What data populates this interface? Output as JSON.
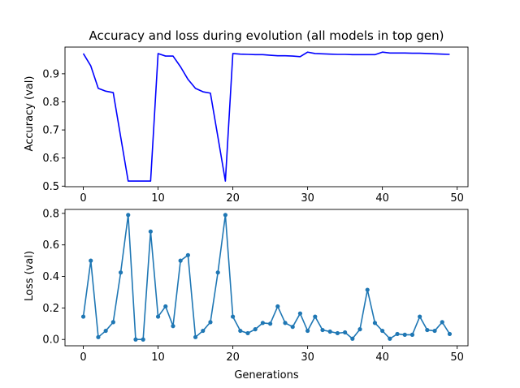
{
  "chart_data": [
    {
      "type": "line",
      "title": "Accuracy and loss during evolution (all models in top gen)",
      "xlabel": "",
      "ylabel": "Accuracy (val)",
      "xlim": [
        -2.45,
        51.45
      ],
      "ylim": [
        0.498,
        0.995
      ],
      "xticks": [
        0,
        10,
        20,
        30,
        40,
        50
      ],
      "yticks": [
        0.5,
        0.6,
        0.7,
        0.8,
        0.9
      ],
      "ytick_labels": [
        "0.5",
        "0.6",
        "0.7",
        "0.8",
        "0.9"
      ],
      "grid": false,
      "color": "#0000ff",
      "markers": false,
      "series": [
        {
          "x": [
            0,
            1,
            2,
            3,
            4,
            5,
            6,
            7,
            8,
            9,
            10,
            11,
            12,
            13,
            14,
            15,
            16,
            17,
            18,
            19,
            20,
            21,
            22,
            23,
            24,
            25,
            26,
            27,
            28,
            29,
            30,
            31,
            32,
            33,
            34,
            35,
            36,
            37,
            38,
            39,
            40,
            41,
            42,
            43,
            44,
            45,
            46,
            47,
            48,
            49
          ],
          "values": [
            0.972,
            0.928,
            0.848,
            0.838,
            0.833,
            0.675,
            0.518,
            0.518,
            0.518,
            0.518,
            0.972,
            0.963,
            0.963,
            0.925,
            0.88,
            0.848,
            0.836,
            0.831,
            0.675,
            0.518,
            0.972,
            0.97,
            0.969,
            0.968,
            0.968,
            0.966,
            0.964,
            0.964,
            0.963,
            0.961,
            0.977,
            0.972,
            0.971,
            0.97,
            0.969,
            0.969,
            0.968,
            0.968,
            0.968,
            0.968,
            0.977,
            0.974,
            0.974,
            0.974,
            0.973,
            0.973,
            0.972,
            0.971,
            0.97,
            0.969
          ]
        }
      ]
    },
    {
      "type": "line",
      "title": "",
      "xlabel": "Generations",
      "ylabel": "Loss (val)",
      "xlim": [
        -2.45,
        51.45
      ],
      "ylim": [
        -0.04,
        0.825
      ],
      "xticks": [
        0,
        10,
        20,
        30,
        40,
        50
      ],
      "yticks": [
        0.0,
        0.2,
        0.4,
        0.6,
        0.8
      ],
      "ytick_labels": [
        "0.0",
        "0.2",
        "0.4",
        "0.6",
        "0.8"
      ],
      "grid": false,
      "color": "#1f77b4",
      "markers": true,
      "series": [
        {
          "x": [
            0,
            1,
            2,
            3,
            4,
            5,
            6,
            7,
            8,
            9,
            10,
            11,
            12,
            13,
            14,
            15,
            16,
            17,
            18,
            19,
            20,
            21,
            22,
            23,
            24,
            25,
            26,
            27,
            28,
            29,
            30,
            31,
            32,
            33,
            34,
            35,
            36,
            37,
            38,
            39,
            40,
            41,
            42,
            43,
            44,
            45,
            46,
            47,
            48,
            49
          ],
          "values": [
            0.145,
            0.5,
            0.015,
            0.055,
            0.11,
            0.425,
            0.79,
            0.0,
            0.0,
            0.685,
            0.145,
            0.21,
            0.085,
            0.5,
            0.535,
            0.015,
            0.055,
            0.11,
            0.425,
            0.79,
            0.145,
            0.055,
            0.04,
            0.065,
            0.105,
            0.1,
            0.21,
            0.105,
            0.08,
            0.165,
            0.055,
            0.145,
            0.06,
            0.05,
            0.04,
            0.045,
            0.005,
            0.065,
            0.315,
            0.105,
            0.055,
            0.005,
            0.035,
            0.03,
            0.03,
            0.145,
            0.06,
            0.055,
            0.11,
            0.035
          ]
        }
      ]
    }
  ]
}
